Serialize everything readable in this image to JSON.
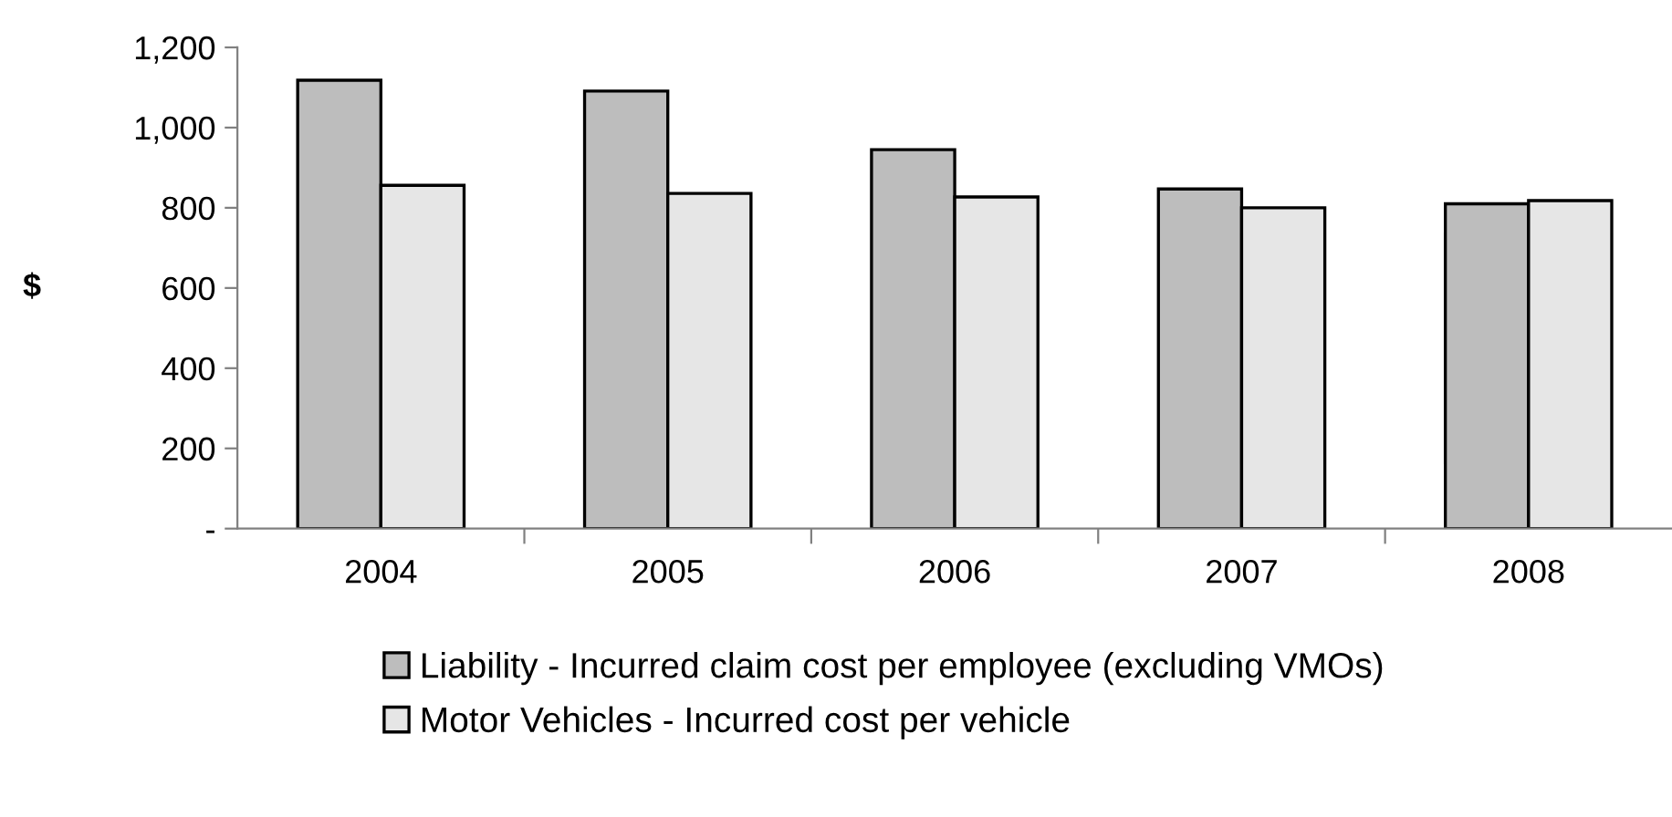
{
  "chart_data": {
    "type": "bar",
    "ylabel": "$",
    "categories": [
      "2004",
      "2005",
      "2006",
      "2007",
      "2008"
    ],
    "series": [
      {
        "name": "Liability - Incurred claim cost per employee (excluding VMOs)",
        "color": "#bdbdbd",
        "values": [
          1118,
          1091,
          945,
          847,
          810
        ]
      },
      {
        "name": "Motor Vehicles - Incurred cost per vehicle",
        "color": "#e6e6e6",
        "values": [
          856,
          836,
          827,
          800,
          818
        ]
      }
    ],
    "ylim": [
      0,
      1200
    ],
    "yticks": [
      {
        "value": 0,
        "label": "-"
      },
      {
        "value": 200,
        "label": "200"
      },
      {
        "value": 400,
        "label": "400"
      },
      {
        "value": 600,
        "label": "600"
      },
      {
        "value": 800,
        "label": "800"
      },
      {
        "value": 1000,
        "label": "1,000"
      },
      {
        "value": 1200,
        "label": "1,200"
      }
    ],
    "grid": false,
    "legend": "bottom"
  }
}
